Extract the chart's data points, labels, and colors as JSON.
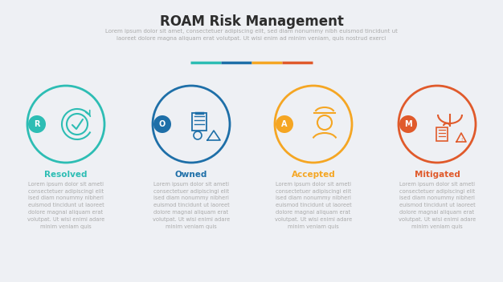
{
  "title": "ROAM Risk Management",
  "subtitle": "Lorem ipsum dolor sit amet, consectetuer adipiscing elit, sed diam nonummy nibh euismod tincidunt ut\nlaoreet dolore magna aliquam erat volutpat. Ut wisi enim ad minim veniam, quis nostrud exerci",
  "background_color": "#eef0f4",
  "items": [
    {
      "letter": "R",
      "label": "Resolved",
      "color": "#2dbdb4",
      "letter_bg": "#2dbdb4",
      "body_text": "Lorem ipsum dolor sit ameti\nconsectetuer adipiscingi elit\nised diam nonummy nibheri\neuismod tincidunt ut laoreet\ndolore magnai aliquam erat\nvolutpat. Ut wisi enimi adare\nminim veniam quis"
    },
    {
      "letter": "O",
      "label": "Owned",
      "color": "#1e6fa8",
      "letter_bg": "#1e6fa8",
      "body_text": "Lorem ipsum dolor sit ameti\nconsectetuer adipiscingi elit\nised diam nonummy nibheri\neuismod tincidunt ut laoreet\ndolore magnai aliquam erat\nvolutpat. Ut wisi enimi adare\nminim veniam quis"
    },
    {
      "letter": "A",
      "label": "Accepted",
      "color": "#f5a623",
      "letter_bg": "#f5a623",
      "body_text": "Lorem ipsum dolor sit ameti\nconsectetuer adipiscingi elit\nised diam nonummy nibheri\neuismod tincidunt ut laoreet\ndolore magnai aliquam erat\nvolutpat. Ut wisi enimi adare\nminim veniam quis"
    },
    {
      "letter": "M",
      "label": "Mitigated",
      "color": "#e05a2b",
      "letter_bg": "#e05a2b",
      "body_text": "Lorem ipsum dolor sit ameti\nconsectetuer adipiscingi elit\nised diam nonummy nibheri\neuismod tincidunt ut laoreet\ndolore magnai aliquam erat\nvolutpat. Ut wisi enimi adare\nminim veniam quis"
    }
  ],
  "separator_colors": [
    "#2dbdb4",
    "#1e6fa8",
    "#f5a623",
    "#e05a2b"
  ],
  "title_color": "#2d2d2d",
  "subtitle_color": "#aaaaaa",
  "label_fontsize": 7.5,
  "body_fontsize": 4.8,
  "title_fontsize": 12
}
